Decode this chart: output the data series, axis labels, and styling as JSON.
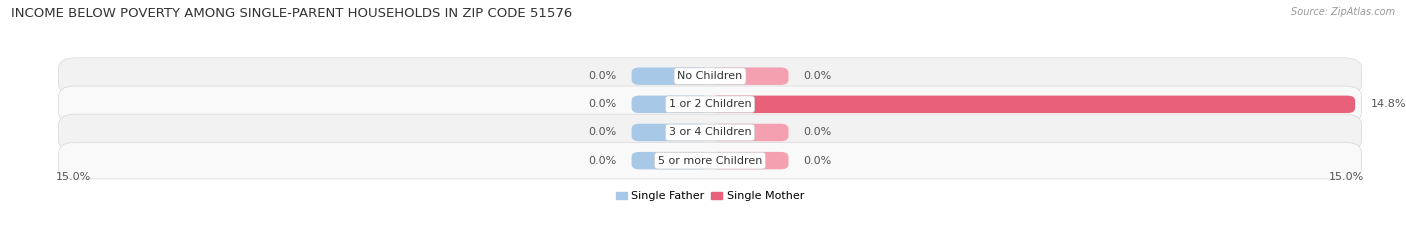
{
  "title": "INCOME BELOW POVERTY AMONG SINGLE-PARENT HOUSEHOLDS IN ZIP CODE 51576",
  "source": "Source: ZipAtlas.com",
  "categories": [
    "No Children",
    "1 or 2 Children",
    "3 or 4 Children",
    "5 or more Children"
  ],
  "single_father": [
    0.0,
    0.0,
    0.0,
    0.0
  ],
  "single_mother": [
    0.0,
    14.8,
    0.0,
    0.0
  ],
  "father_color": "#a8c8e8",
  "mother_color_small": "#f4a0b0",
  "mother_color_large": "#e8607a",
  "xlim_max": 15.0,
  "row_bg_color": "#f0f0f0",
  "row_border_color": "#dddddd",
  "title_fontsize": 9.5,
  "source_fontsize": 7,
  "value_fontsize": 8,
  "cat_fontsize": 8,
  "legend_fontsize": 8,
  "bar_height": 0.62,
  "min_bar_width": 1.8
}
